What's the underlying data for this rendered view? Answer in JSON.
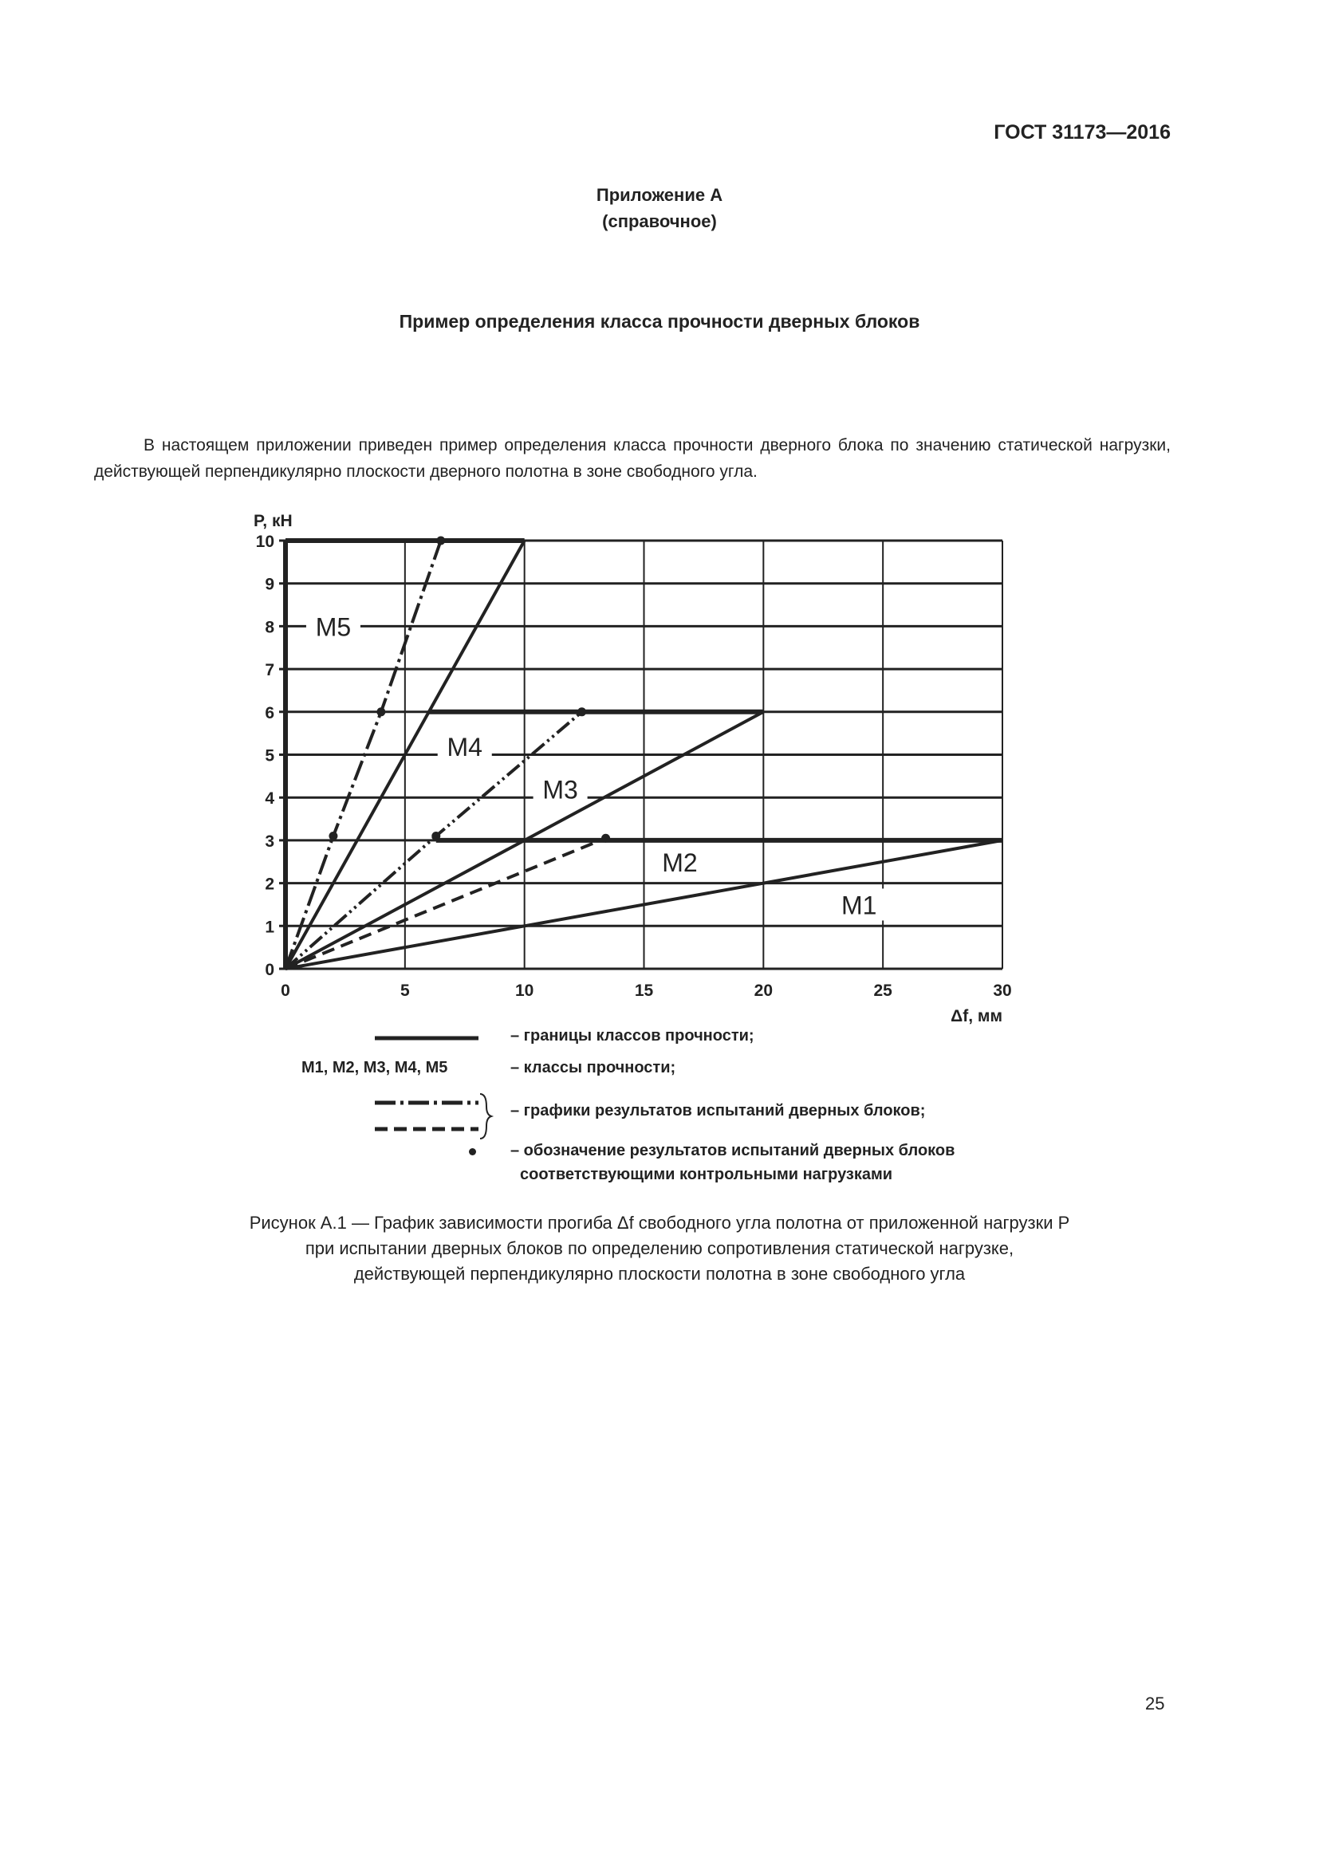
{
  "header": {
    "doc_id": "ГОСТ 31173—2016"
  },
  "annex": {
    "title": "Приложение А",
    "subtitle": "(справочное)"
  },
  "section_title": "Пример определения класса прочности дверных блоков",
  "intro": "В настоящем приложении приведен пример определения класса прочности дверного блока по значению статической нагрузки, действующей перпендикулярно плоскости дверного полотна в зоне свободного угла.",
  "legend": {
    "boundaries": "– границы классов прочности;",
    "classes_key": "М1, М2, М3, М4, М5",
    "classes": "– классы прочности;",
    "test_graphs": "– графики результатов испытаний дверных блоков;",
    "points_line1": "– обозначение результатов испытаний дверных блоков",
    "points_line2": "соответствующими контрольными нагрузками"
  },
  "caption": [
    "Рисунок А.1 — График зависимости прогиба Δf свободного угла полотна от приложенной нагрузки P",
    "при испытании дверных блоков по определению сопротивления статической нагрузке,",
    "действующей перпендикулярно плоскости полотна в зоне свободного угла"
  ],
  "page_number": "25",
  "chart_data": {
    "type": "line",
    "xlabel": "Δf, мм",
    "ylabel": "P, кН",
    "xlim": [
      0,
      30
    ],
    "ylim": [
      0,
      10
    ],
    "xticks": [
      "0",
      "5",
      "10",
      "15",
      "20",
      "25",
      "30"
    ],
    "yticks": [
      "0",
      "1",
      "2",
      "3",
      "4",
      "5",
      "6",
      "7",
      "8",
      "9",
      "10"
    ],
    "grid": true,
    "boundaries": [
      {
        "style": "solid",
        "points": [
          [
            0,
            0
          ],
          [
            30,
            3
          ]
        ]
      },
      {
        "style": "solid",
        "points": [
          [
            0,
            0
          ],
          [
            20,
            6
          ]
        ]
      },
      {
        "style": "solid",
        "points": [
          [
            0,
            0
          ],
          [
            10,
            10
          ]
        ]
      },
      {
        "style": "thick",
        "points": [
          [
            6.3,
            3
          ],
          [
            30,
            3
          ]
        ]
      },
      {
        "style": "thick",
        "points": [
          [
            6,
            6
          ],
          [
            20,
            6
          ]
        ]
      },
      {
        "style": "thick",
        "points": [
          [
            0,
            10
          ],
          [
            10,
            10
          ]
        ]
      }
    ],
    "test_series": [
      {
        "style": "dashdot",
        "points": [
          [
            0,
            0
          ],
          [
            2,
            3.1
          ],
          [
            4,
            6
          ],
          [
            6.5,
            10
          ]
        ],
        "marked": [
          [
            2,
            3.1
          ],
          [
            4,
            6
          ],
          [
            6.5,
            10
          ]
        ]
      },
      {
        "style": "dashdotdot",
        "points": [
          [
            0,
            0
          ],
          [
            6.3,
            3.1
          ],
          [
            12.4,
            6
          ]
        ],
        "marked": [
          [
            6.3,
            3.1
          ],
          [
            12.4,
            6
          ]
        ]
      },
      {
        "style": "dashed",
        "points": [
          [
            0,
            0
          ],
          [
            13.4,
            3.05
          ]
        ],
        "marked": [
          [
            13.4,
            3.05
          ]
        ]
      }
    ],
    "class_labels": [
      {
        "text": "М5",
        "x": 2,
        "y": 8
      },
      {
        "text": "М4",
        "x": 7.5,
        "y": 5.2
      },
      {
        "text": "М3",
        "x": 11.5,
        "y": 4.2
      },
      {
        "text": "М2",
        "x": 16.5,
        "y": 2.5
      },
      {
        "text": "М1",
        "x": 24,
        "y": 1.5
      }
    ]
  }
}
